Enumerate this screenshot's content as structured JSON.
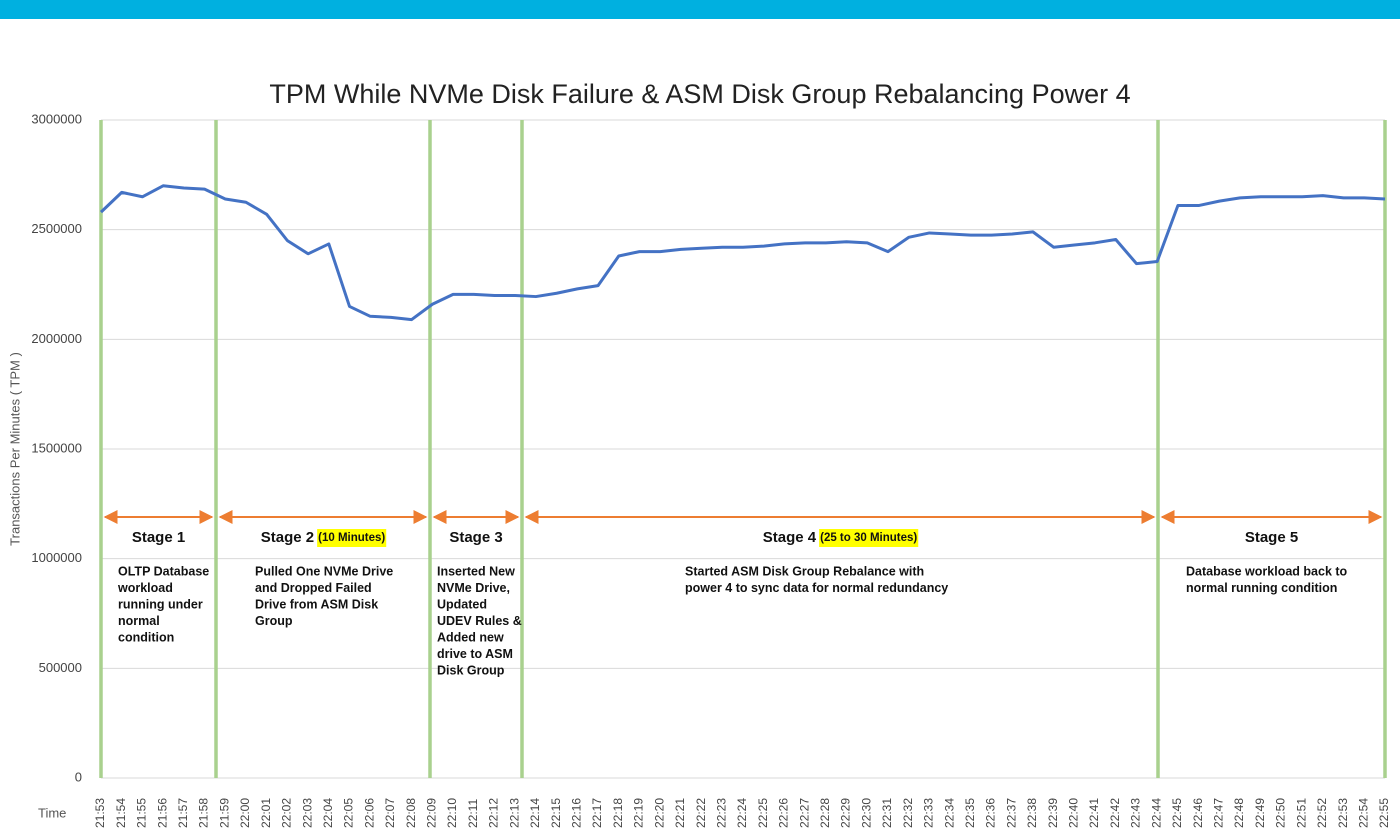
{
  "chart_data": {
    "type": "line",
    "title": "TPM While NVMe Disk Failure & ASM Disk Group Rebalancing Power 4",
    "y_label": "Transactions Per Minutes ( TPM )",
    "x_label": "Time",
    "categories": [
      "21:53",
      "21:54",
      "21:55",
      "21:56",
      "21:57",
      "21:58",
      "21:59",
      "22:00",
      "22:01",
      "22:02",
      "22:03",
      "22:04",
      "22:05",
      "22:06",
      "22:07",
      "22:08",
      "22:09",
      "22:10",
      "22:11",
      "22:12",
      "22:13",
      "22:14",
      "22:15",
      "22:16",
      "22:17",
      "22:18",
      "22:19",
      "22:20",
      "22:21",
      "22:22",
      "22:23",
      "22:24",
      "22:25",
      "22:26",
      "22:27",
      "22:28",
      "22:29",
      "22:30",
      "22:31",
      "22:32",
      "22:33",
      "22:34",
      "22:35",
      "22:36",
      "22:37",
      "22:38",
      "22:39",
      "22:40",
      "22:41",
      "22:42",
      "22:43",
      "22:44",
      "22:45",
      "22:46",
      "22:47",
      "22:48",
      "22:49",
      "22:50",
      "22:51",
      "22:52",
      "22:53",
      "22:54",
      "22:55"
    ],
    "series": [
      {
        "name": "TPM",
        "color": "#4472c4",
        "values": [
          2580000,
          2670000,
          2650000,
          2700000,
          2690000,
          2685000,
          2640000,
          2625000,
          2570000,
          2450000,
          2390000,
          2435000,
          2150000,
          2105000,
          2100000,
          2090000,
          2160000,
          2205000,
          2205000,
          2200000,
          2200000,
          2195000,
          2210000,
          2230000,
          2245000,
          2380000,
          2400000,
          2400000,
          2410000,
          2415000,
          2420000,
          2420000,
          2425000,
          2435000,
          2440000,
          2440000,
          2445000,
          2440000,
          2400000,
          2465000,
          2485000,
          2480000,
          2475000,
          2475000,
          2480000,
          2490000,
          2420000,
          2430000,
          2440000,
          2455000,
          2345000,
          2355000,
          2610000,
          2610000,
          2630000,
          2645000,
          2650000,
          2650000,
          2650000,
          2655000,
          2645000,
          2645000,
          2640000
        ]
      }
    ],
    "ylim": [
      0,
      3000000
    ],
    "yticks": [
      0,
      500000,
      1000000,
      1500000,
      2000000,
      2500000,
      3000000
    ],
    "grid": true,
    "stages": [
      {
        "title": "Stage 1",
        "description": [
          "OLTP Database",
          "workload",
          "running under",
          "normal",
          "condition"
        ]
      },
      {
        "title": "Stage 2",
        "note": "(10 Minutes)",
        "description": [
          "Pulled One NVMe Drive",
          "and Dropped Failed",
          "Drive from ASM Disk",
          "Group"
        ]
      },
      {
        "title": "Stage 3",
        "description": [
          "Inserted New",
          "NVMe Drive,",
          "Updated",
          "UDEV Rules &",
          "Added new",
          "drive to ASM",
          "Disk Group"
        ]
      },
      {
        "title": "Stage 4",
        "note": "(25 to 30 Minutes)",
        "description": [
          "Started ASM Disk Group Rebalance with",
          "power 4 to sync data for normal redundancy"
        ]
      },
      {
        "title": "Stage 5",
        "description": [
          "Database workload back to",
          "normal running condition"
        ]
      }
    ]
  }
}
